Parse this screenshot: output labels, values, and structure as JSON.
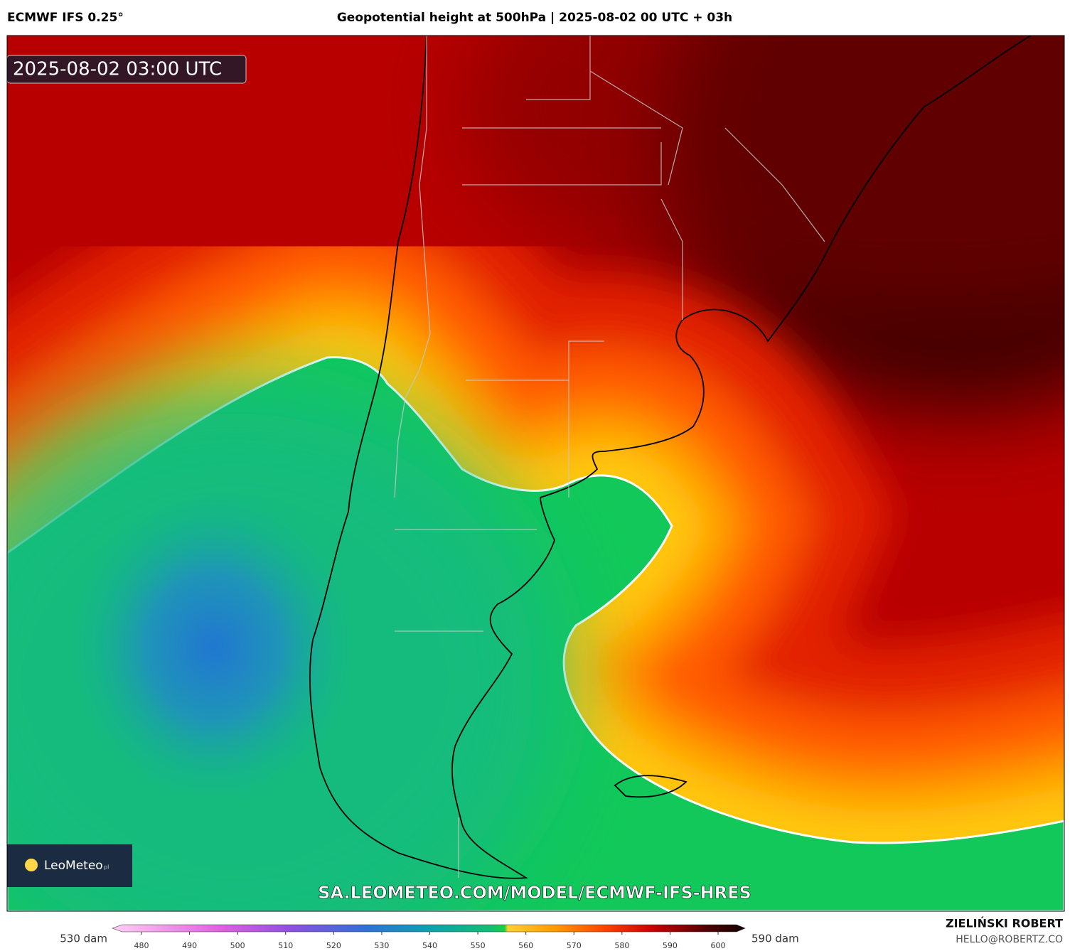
{
  "header": {
    "left": "ECMWF IFS 0.25°",
    "title": "Geopotential height at 500hPa | 2025-08-02 00 UTC + 03h"
  },
  "map": {
    "timestamp": "2025-08-02 03:00 UTC",
    "logo": "LeoMeteo",
    "logo_suffix": "pl",
    "watermark": "SA.LEOMETEO.COM/MODEL/ECMWF-IFS-HRES"
  },
  "colorbar": {
    "min_label": "530 dam",
    "max_label": "590 dam",
    "ticks": [
      480,
      490,
      500,
      510,
      520,
      530,
      540,
      550,
      560,
      570,
      580,
      590,
      600
    ]
  },
  "credits": {
    "author": "ZIELIŃSKI ROBERT",
    "email": "HELLO@ROBERTZ.CO"
  }
}
